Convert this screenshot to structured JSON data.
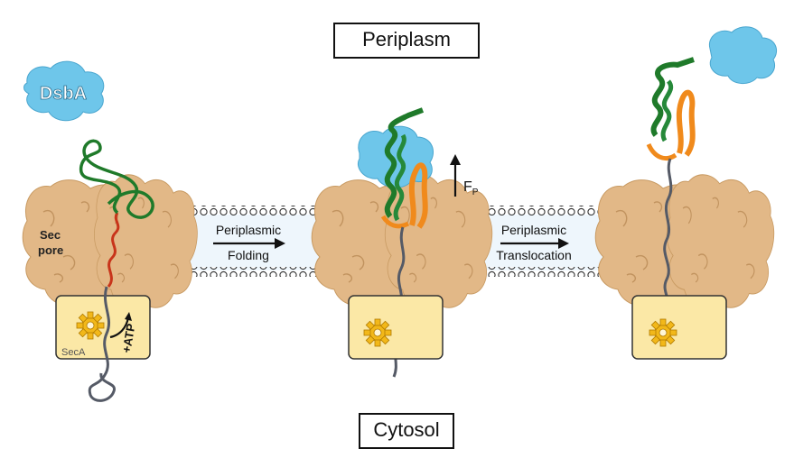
{
  "compartments": {
    "top": "Periplasm",
    "bottom": "Cytosol"
  },
  "labels": {
    "chaperone": "DsbA",
    "pore": [
      "Sec",
      "pore"
    ],
    "motor": "SecA",
    "energy": "+ATP",
    "force_symbol": "F",
    "force_subscript": "P"
  },
  "steps": [
    {
      "line1": "Periplasmic",
      "line2": "Folding"
    },
    {
      "line1": "Periplasmic",
      "line2": "Translocation"
    }
  ],
  "colors": {
    "pore": "#e2b887",
    "dsba": "#6ec6ea",
    "seca_box": "#fbe8a6",
    "gear": "#f2b81a",
    "helix_green": "#1f7a2a",
    "strand_orange": "#f08a1c",
    "unfolded_red": "#c8341a",
    "chain_gray": "#555a66",
    "membrane_fill": "#eef6fc"
  }
}
